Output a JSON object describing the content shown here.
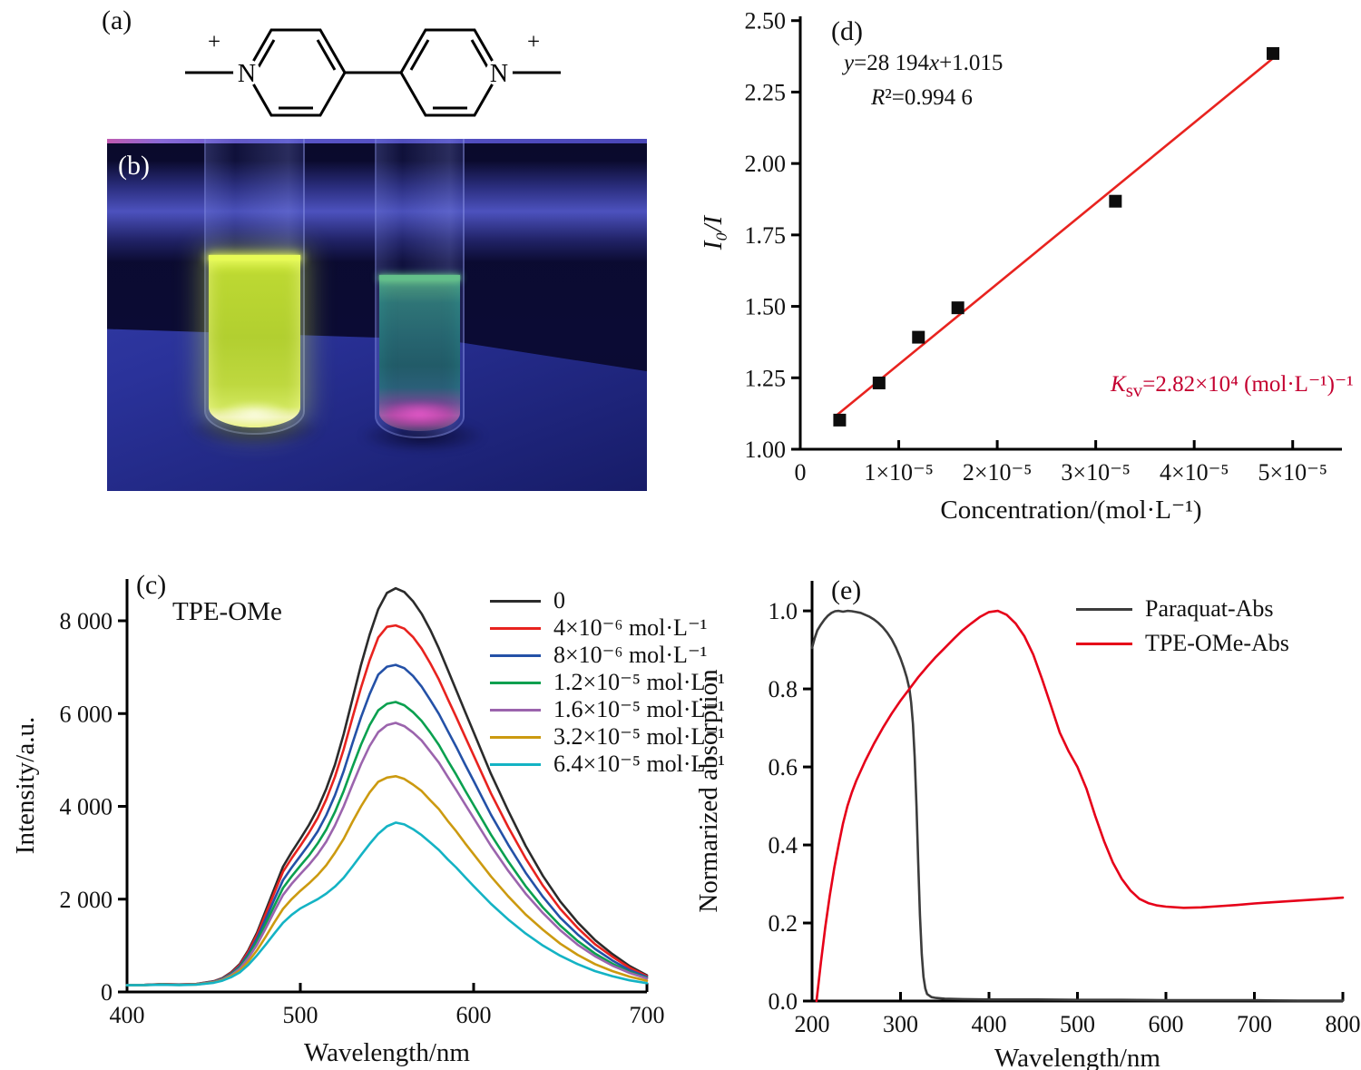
{
  "panels": {
    "a": {
      "label": "(a)",
      "nitrogen": "N",
      "charge": "+"
    },
    "b": {
      "label": "(b)"
    },
    "c": {
      "label": "(c)",
      "title": "TPE-OMe"
    },
    "d": {
      "label": "(d)",
      "eq_y": "y",
      "eq_mid": "=28 194",
      "eq_x": "x",
      "eq_end": "+1.015",
      "r2_r": "R",
      "r2_rest": "²=0.994 6",
      "ksv_k": "K",
      "ksv_sub": "sv",
      "ksv_rest": "=2.82×10⁴ (mol·L⁻¹)⁻¹",
      "ksv_color": "#c40030"
    },
    "e": {
      "label": "(e)"
    }
  },
  "chart_data": [
    {
      "id": "c",
      "type": "line",
      "panel_label": "(c)",
      "title": "TPE-OMe",
      "xlabel": "Wavelength/nm",
      "ylabel": "Intensity/a.u.",
      "xlim": [
        400,
        700
      ],
      "ylim": [
        0,
        8900
      ],
      "grid": false,
      "legend_position": "top-right",
      "xticks": [
        {
          "v": 400,
          "t": "400"
        },
        {
          "v": 500,
          "t": "500"
        },
        {
          "v": 600,
          "t": "600"
        },
        {
          "v": 700,
          "t": "700"
        }
      ],
      "yticks": [
        {
          "v": 0,
          "t": "0"
        },
        {
          "v": 2000,
          "t": "2 000"
        },
        {
          "v": 4000,
          "t": "4 000"
        },
        {
          "v": 6000,
          "t": "6 000"
        },
        {
          "v": 8000,
          "t": "8 000"
        }
      ],
      "x": [
        400,
        410,
        420,
        430,
        440,
        450,
        455,
        460,
        465,
        470,
        475,
        480,
        485,
        490,
        495,
        500,
        505,
        510,
        515,
        520,
        525,
        530,
        535,
        540,
        545,
        550,
        555,
        560,
        565,
        570,
        575,
        580,
        585,
        590,
        595,
        600,
        610,
        620,
        630,
        640,
        650,
        660,
        670,
        680,
        690,
        700
      ],
      "series": [
        {
          "name": "0",
          "color": "#2b2b2b",
          "y": [
            150,
            152,
            170,
            162,
            172,
            230,
            300,
            420,
            600,
            900,
            1280,
            1750,
            2230,
            2700,
            3010,
            3300,
            3600,
            3950,
            4380,
            4900,
            5560,
            6300,
            7050,
            7700,
            8250,
            8600,
            8700,
            8620,
            8420,
            8150,
            7800,
            7400,
            6950,
            6500,
            6050,
            5600,
            4700,
            3900,
            3150,
            2500,
            1950,
            1500,
            1120,
            820,
            560,
            360
          ]
        },
        {
          "name": "4×10⁻⁶ mol·L⁻¹",
          "color": "#e8231f",
          "y": [
            150,
            151,
            168,
            160,
            170,
            226,
            292,
            408,
            580,
            868,
            1232,
            1680,
            2140,
            2590,
            2880,
            3150,
            3430,
            3750,
            4150,
            4640,
            5230,
            5900,
            6560,
            7150,
            7640,
            7870,
            7900,
            7830,
            7650,
            7400,
            7080,
            6730,
            6320,
            5920,
            5510,
            5100,
            4280,
            3550,
            2880,
            2290,
            1790,
            1380,
            1030,
            760,
            520,
            340
          ]
        },
        {
          "name": "8×10⁻⁶ mol·L⁻¹",
          "color": "#2451a7",
          "y": [
            148,
            150,
            166,
            158,
            168,
            221,
            283,
            392,
            552,
            820,
            1160,
            1570,
            2000,
            2410,
            2680,
            2930,
            3180,
            3460,
            3810,
            4240,
            4760,
            5350,
            5920,
            6420,
            6840,
            7010,
            7050,
            6980,
            6810,
            6580,
            6290,
            5990,
            5630,
            5280,
            4910,
            4550,
            3820,
            3170,
            2570,
            2050,
            1600,
            1240,
            930,
            680,
            470,
            320
          ]
        },
        {
          "name": "1.2×10⁻⁵ mol·L⁻¹",
          "color": "#0aa04f",
          "y": [
            147,
            149,
            164,
            156,
            166,
            216,
            274,
            376,
            524,
            772,
            1090,
            1470,
            1860,
            2240,
            2490,
            2720,
            2940,
            3200,
            3500,
            3880,
            4330,
            4840,
            5330,
            5750,
            6070,
            6210,
            6250,
            6180,
            6030,
            5840,
            5590,
            5320,
            4990,
            4680,
            4350,
            4030,
            3390,
            2810,
            2280,
            1820,
            1430,
            1100,
            830,
            610,
            430,
            300
          ]
        },
        {
          "name": "1.6×10⁻⁵ mol·L⁻¹",
          "color": "#9b64ad",
          "y": [
            146,
            148,
            162,
            154,
            164,
            212,
            267,
            362,
            500,
            730,
            1020,
            1370,
            1740,
            2090,
            2330,
            2540,
            2740,
            2970,
            3240,
            3590,
            4000,
            4460,
            4910,
            5300,
            5600,
            5750,
            5800,
            5730,
            5590,
            5420,
            5180,
            4940,
            4640,
            4350,
            4050,
            3750,
            3150,
            2610,
            2120,
            1700,
            1330,
            1020,
            770,
            570,
            410,
            290
          ]
        },
        {
          "name": "3.2×10⁻⁵ mol·L⁻¹",
          "color": "#cc9a10",
          "y": [
            145,
            147,
            158,
            151,
            160,
            204,
            254,
            338,
            458,
            656,
            900,
            1190,
            1500,
            1790,
            2000,
            2180,
            2340,
            2520,
            2730,
            3000,
            3300,
            3660,
            4000,
            4300,
            4530,
            4620,
            4650,
            4590,
            4470,
            4330,
            4130,
            3940,
            3690,
            3460,
            3210,
            2970,
            2490,
            2060,
            1670,
            1340,
            1040,
            800,
            600,
            450,
            330,
            240
          ]
        },
        {
          "name": "6.4×10⁻⁵ mol·L⁻¹",
          "color": "#14b3c4",
          "y": [
            145,
            147,
            155,
            149,
            157,
            197,
            242,
            316,
            420,
            585,
            790,
            1020,
            1260,
            1490,
            1660,
            1800,
            1900,
            2000,
            2120,
            2270,
            2460,
            2700,
            2950,
            3190,
            3410,
            3570,
            3650,
            3610,
            3510,
            3380,
            3220,
            3060,
            2860,
            2680,
            2480,
            2280,
            1900,
            1560,
            1260,
            1000,
            780,
            600,
            450,
            340,
            250,
            190
          ]
        }
      ]
    },
    {
      "id": "d",
      "type": "scatter",
      "panel_label": "(d)",
      "xlabel": "Concentration/(mol·L⁻¹)",
      "ylabel": "I₀/I",
      "ylabel_italic": true,
      "xlim": [
        0,
        5.5e-05
      ],
      "ylim": [
        1.0,
        2.515
      ],
      "grid": false,
      "xticks": [
        {
          "v": 0,
          "t": "0"
        },
        {
          "v": 1e-05,
          "t": "1×10⁻⁵"
        },
        {
          "v": 2e-05,
          "t": "2×10⁻⁵"
        },
        {
          "v": 3e-05,
          "t": "3×10⁻⁵"
        },
        {
          "v": 4e-05,
          "t": "4×10⁻⁵"
        },
        {
          "v": 5e-05,
          "t": "5×10⁻⁵"
        }
      ],
      "yticks": [
        {
          "v": 1.0,
          "t": "1.00"
        },
        {
          "v": 1.25,
          "t": "1.25"
        },
        {
          "v": 1.5,
          "t": "1.50"
        },
        {
          "v": 1.75,
          "t": "1.75"
        },
        {
          "v": 2.0,
          "t": "2.00"
        },
        {
          "v": 2.25,
          "t": "2.25"
        },
        {
          "v": 2.5,
          "t": "2.50"
        }
      ],
      "points": [
        [
          4e-06,
          1.102
        ],
        [
          8e-06,
          1.232
        ],
        [
          1.2e-05,
          1.392
        ],
        [
          1.6e-05,
          1.495
        ],
        [
          3.2e-05,
          1.868
        ],
        [
          4.8e-05,
          2.385
        ]
      ],
      "point_color": "#0d0d0d",
      "fit": {
        "slope": 28194,
        "intercept": 1.015,
        "x_range": [
          3.6e-06,
          4.85e-05
        ],
        "color": "#e8231f"
      },
      "annotations": {
        "equation": "y=28 194x+1.015",
        "r_squared": "R²=0.994 6",
        "ksv": "Ksv=2.82×10⁴ (mol·L⁻¹)⁻¹"
      }
    },
    {
      "id": "e",
      "type": "line",
      "panel_label": "(e)",
      "xlabel": "Wavelength/nm",
      "ylabel": "Normarized absorption",
      "xlim": [
        200,
        800
      ],
      "ylim": [
        0,
        1.077
      ],
      "grid": false,
      "legend_position": "top-right",
      "xticks": [
        {
          "v": 200,
          "t": "200"
        },
        {
          "v": 300,
          "t": "300"
        },
        {
          "v": 400,
          "t": "400"
        },
        {
          "v": 500,
          "t": "500"
        },
        {
          "v": 600,
          "t": "600"
        },
        {
          "v": 700,
          "t": "700"
        },
        {
          "v": 800,
          "t": "800"
        }
      ],
      "yticks": [
        {
          "v": 0,
          "t": "0.0"
        },
        {
          "v": 0.2,
          "t": "0.2"
        },
        {
          "v": 0.4,
          "t": "0.4"
        },
        {
          "v": 0.6,
          "t": "0.6"
        },
        {
          "v": 0.8,
          "t": "0.8"
        },
        {
          "v": 1.0,
          "t": "1.0"
        }
      ],
      "series": [
        {
          "name": "Paraquat-Abs",
          "color": "#3c3c3c",
          "x": [
            200,
            203,
            206,
            210,
            214,
            218,
            222,
            226,
            230,
            235,
            240,
            245,
            250,
            255,
            260,
            265,
            270,
            275,
            280,
            285,
            290,
            295,
            300,
            304,
            307,
            310,
            312,
            314,
            316,
            318,
            320,
            322,
            324,
            326,
            328,
            330,
            335,
            340,
            350,
            370,
            400,
            450,
            500,
            550,
            600,
            650,
            700,
            750,
            800
          ],
          "y": [
            0.905,
            0.93,
            0.95,
            0.965,
            0.978,
            0.988,
            0.995,
            0.999,
            1.0,
            0.998,
            1.0,
            0.999,
            0.997,
            0.995,
            0.99,
            0.985,
            0.978,
            0.969,
            0.958,
            0.944,
            0.927,
            0.905,
            0.878,
            0.852,
            0.83,
            0.8,
            0.765,
            0.71,
            0.625,
            0.5,
            0.355,
            0.22,
            0.12,
            0.062,
            0.032,
            0.018,
            0.01,
            0.008,
            0.006,
            0.005,
            0.004,
            0.004,
            0.003,
            0.003,
            0.002,
            0.002,
            0.002,
            0.001,
            0.001
          ]
        },
        {
          "name": "TPE-OMe-Abs",
          "color": "#e60019",
          "x": [
            205,
            210,
            215,
            220,
            225,
            230,
            235,
            240,
            245,
            250,
            260,
            270,
            280,
            290,
            300,
            310,
            320,
            330,
            340,
            350,
            360,
            370,
            380,
            390,
            400,
            410,
            420,
            430,
            440,
            450,
            460,
            470,
            480,
            490,
            500,
            510,
            520,
            530,
            540,
            550,
            560,
            570,
            580,
            590,
            600,
            620,
            640,
            660,
            680,
            700,
            720,
            740,
            760,
            780,
            800
          ],
          "y": [
            0.0,
            0.1,
            0.19,
            0.27,
            0.34,
            0.4,
            0.455,
            0.5,
            0.535,
            0.565,
            0.615,
            0.66,
            0.7,
            0.737,
            0.77,
            0.8,
            0.83,
            0.857,
            0.882,
            0.905,
            0.928,
            0.95,
            0.968,
            0.985,
            0.997,
            1.0,
            0.99,
            0.968,
            0.935,
            0.888,
            0.825,
            0.757,
            0.688,
            0.64,
            0.6,
            0.545,
            0.475,
            0.41,
            0.355,
            0.313,
            0.283,
            0.262,
            0.251,
            0.245,
            0.242,
            0.239,
            0.24,
            0.243,
            0.246,
            0.25,
            0.253,
            0.256,
            0.259,
            0.262,
            0.265
          ]
        }
      ]
    }
  ]
}
